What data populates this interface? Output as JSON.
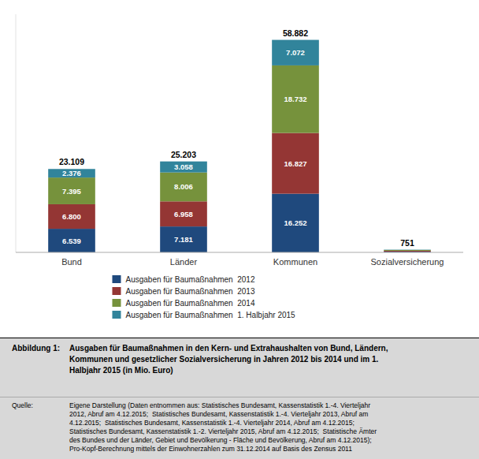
{
  "chart_data": {
    "type": "bar",
    "stacked": true,
    "data_labels": true,
    "tick_labels": "x",
    "grid": false,
    "legend": "bottom",
    "categories": [
      "Bund",
      "Länder",
      "Kommunen",
      "Sozialversicherung"
    ],
    "series": [
      {
        "name": "Ausgaben für Baumaßnahmen  2012",
        "color": "#1F497D",
        "values": [
          6539,
          7181,
          16252,
          200
        ],
        "value_labels": [
          "6.539",
          "7.181",
          "16.252",
          null
        ]
      },
      {
        "name": "Ausgaben für Baumaßnahmen  2013",
        "color": "#943634",
        "values": [
          6800,
          6958,
          16827,
          250
        ],
        "value_labels": [
          "6.800",
          "6.958",
          "16.827",
          null
        ]
      },
      {
        "name": "Ausgaben für Baumaßnahmen  2014",
        "color": "#76923C",
        "values": [
          7395,
          8006,
          18732,
          220
        ],
        "value_labels": [
          "7.395",
          "8.006",
          "18.732",
          null
        ]
      },
      {
        "name": "Ausgaben für Baumaßnahmen  1. Halbjahr 2015",
        "color": "#31849B",
        "values": [
          2376,
          3058,
          7072,
          81
        ],
        "value_labels": [
          "2.376",
          "3.058",
          "7.072",
          null
        ]
      }
    ],
    "totals": [
      23109,
      25203,
      58882,
      751
    ],
    "total_labels": [
      "23.109",
      "25.203",
      "58.882",
      "751"
    ],
    "ylim": [
      0,
      66000
    ],
    "caption_title": "Abbildung 1:",
    "caption_text": "Ausgaben für Baumaßnahmen in den Kern- und Extrahaushalten von Bund, Ländern,\nKommunen und gesetzlicher Sozialversicherung in Jahren 2012 bis 2014 und im 1.\nHalbjahr 2015 (in Mio. Euro)",
    "source_label": "Quelle:",
    "source_text": "Eigene Darstellung (Daten entnommen aus: Statistisches Bundesamt, Kassenstatistik 1.-4. Vierteljahr\n2012, Abruf am 4.12.2015;  Statistisches Bundesamt, Kassenstatistik 1.-4. Vierteljahr 2013, Abruf am\n4.12.2015;  Statistisches Bundesamt, Kassenstatistik 1.-4. Vierteljahr 2014, Abruf am 4.12.2015;\nStatistisches Bundesamt, Kassenstatistik 1.-2. Vierteljahr 2015, Abruf am 4.12.2015;  Statistische Ämter\ndes Bundes und der Länder, Gebiet und Bevölkerung - Fläche und Bevölkerung, Abruf am 4.12.2015);\nPro-Kopf-Berechnung mittels der Einwohnerzahlen zum 31.12.2014 auf Basis des Zensus 2011"
  }
}
